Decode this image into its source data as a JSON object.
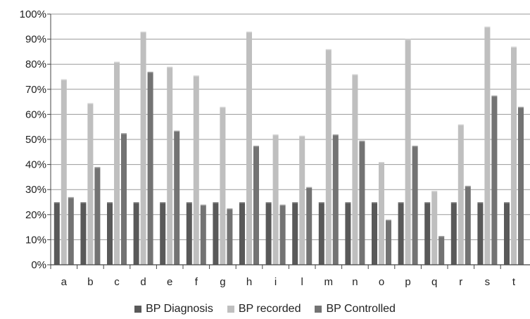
{
  "chart_data": {
    "type": "bar",
    "categories": [
      "a",
      "b",
      "c",
      "d",
      "e",
      "f",
      "g",
      "h",
      "i",
      "l",
      "m",
      "n",
      "o",
      "p",
      "q",
      "r",
      "s",
      "t"
    ],
    "series": [
      {
        "name": "BP Diagnosis",
        "color": "#595959",
        "values": [
          25,
          25,
          25,
          25,
          25,
          25,
          25,
          25,
          25,
          25,
          25,
          25,
          25,
          25,
          25,
          25,
          25,
          25
        ]
      },
      {
        "name": "BP recorded",
        "color": "#bfbfbf",
        "values": [
          74,
          64.5,
          81,
          93,
          79,
          75.5,
          63,
          93,
          52,
          51.5,
          86,
          76,
          41,
          90,
          29.5,
          56,
          95,
          87
        ]
      },
      {
        "name": "BP Controlled",
        "color": "#737373",
        "values": [
          27,
          39,
          52.5,
          77,
          53.5,
          24,
          22.5,
          47.5,
          24,
          31,
          52,
          49.5,
          18,
          47.5,
          11.5,
          31.5,
          67.5,
          63
        ]
      }
    ],
    "yticks": [
      "0%",
      "10%",
      "20%",
      "30%",
      "40%",
      "50%",
      "60%",
      "70%",
      "80%",
      "90%",
      "100%"
    ],
    "ylim": [
      0,
      100
    ],
    "grid": true,
    "legend_position": "bottom"
  }
}
